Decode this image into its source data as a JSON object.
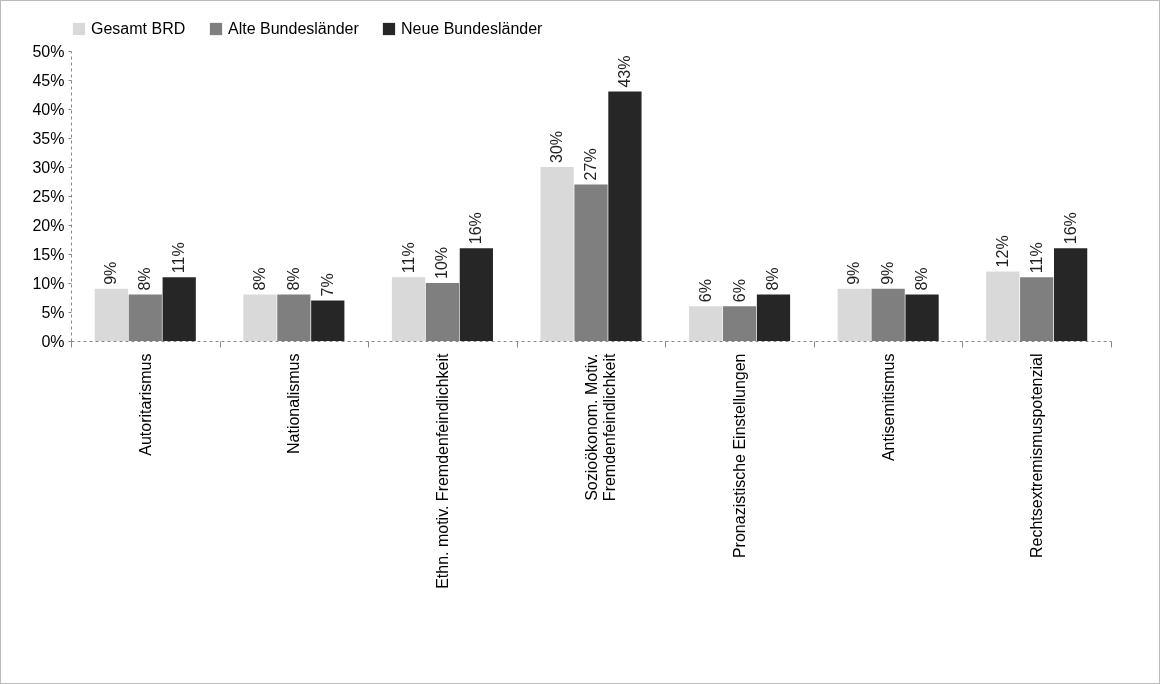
{
  "chart_data": {
    "type": "bar",
    "categories": [
      "Autoritarismus",
      "Nationalismus",
      "Ethn.  motiv. Fremdenfeindlichkeit",
      "Sozioökonom. Motiv. Fremdenfeindlichkeit",
      "Pronazistische Einstellungen",
      "Antisemitismus",
      "Rechtsextremismuspotenzial"
    ],
    "series": [
      {
        "name": "Gesamt BRD",
        "color": "#d9d9d9",
        "values": [
          9,
          8,
          11,
          30,
          6,
          9,
          12
        ],
        "value_labels": [
          "9%",
          "8%",
          "11%",
          "30%",
          "6%",
          "9%",
          "12%"
        ]
      },
      {
        "name": "Alte Bundesländer",
        "color": "#7f7f7f",
        "values": [
          8,
          8,
          10,
          27,
          6,
          9,
          11
        ],
        "value_labels": [
          "8%",
          "8%",
          "10%",
          "27%",
          "6%",
          "9%",
          "11%"
        ]
      },
      {
        "name": "Neue Bundesländer",
        "color": "#262626",
        "values": [
          11,
          7,
          16,
          43,
          8,
          8,
          16
        ],
        "value_labels": [
          "11%",
          "7%",
          "16%",
          "43%",
          "8%",
          "8%",
          "16%"
        ]
      }
    ],
    "ylim": [
      0,
      50
    ],
    "yticks": [
      {
        "value": 0,
        "label": "0%"
      },
      {
        "value": 5,
        "label": "5%"
      },
      {
        "value": 10,
        "label": "10%"
      },
      {
        "value": 15,
        "label": "15%"
      },
      {
        "value": 20,
        "label": "20%"
      },
      {
        "value": 25,
        "label": "25%"
      },
      {
        "value": 30,
        "label": "30%"
      },
      {
        "value": 35,
        "label": "35%"
      },
      {
        "value": 40,
        "label": "40%"
      },
      {
        "value": 45,
        "label": "45%"
      },
      {
        "value": 50,
        "label": "50%"
      }
    ],
    "grid": false,
    "legend": "top"
  }
}
